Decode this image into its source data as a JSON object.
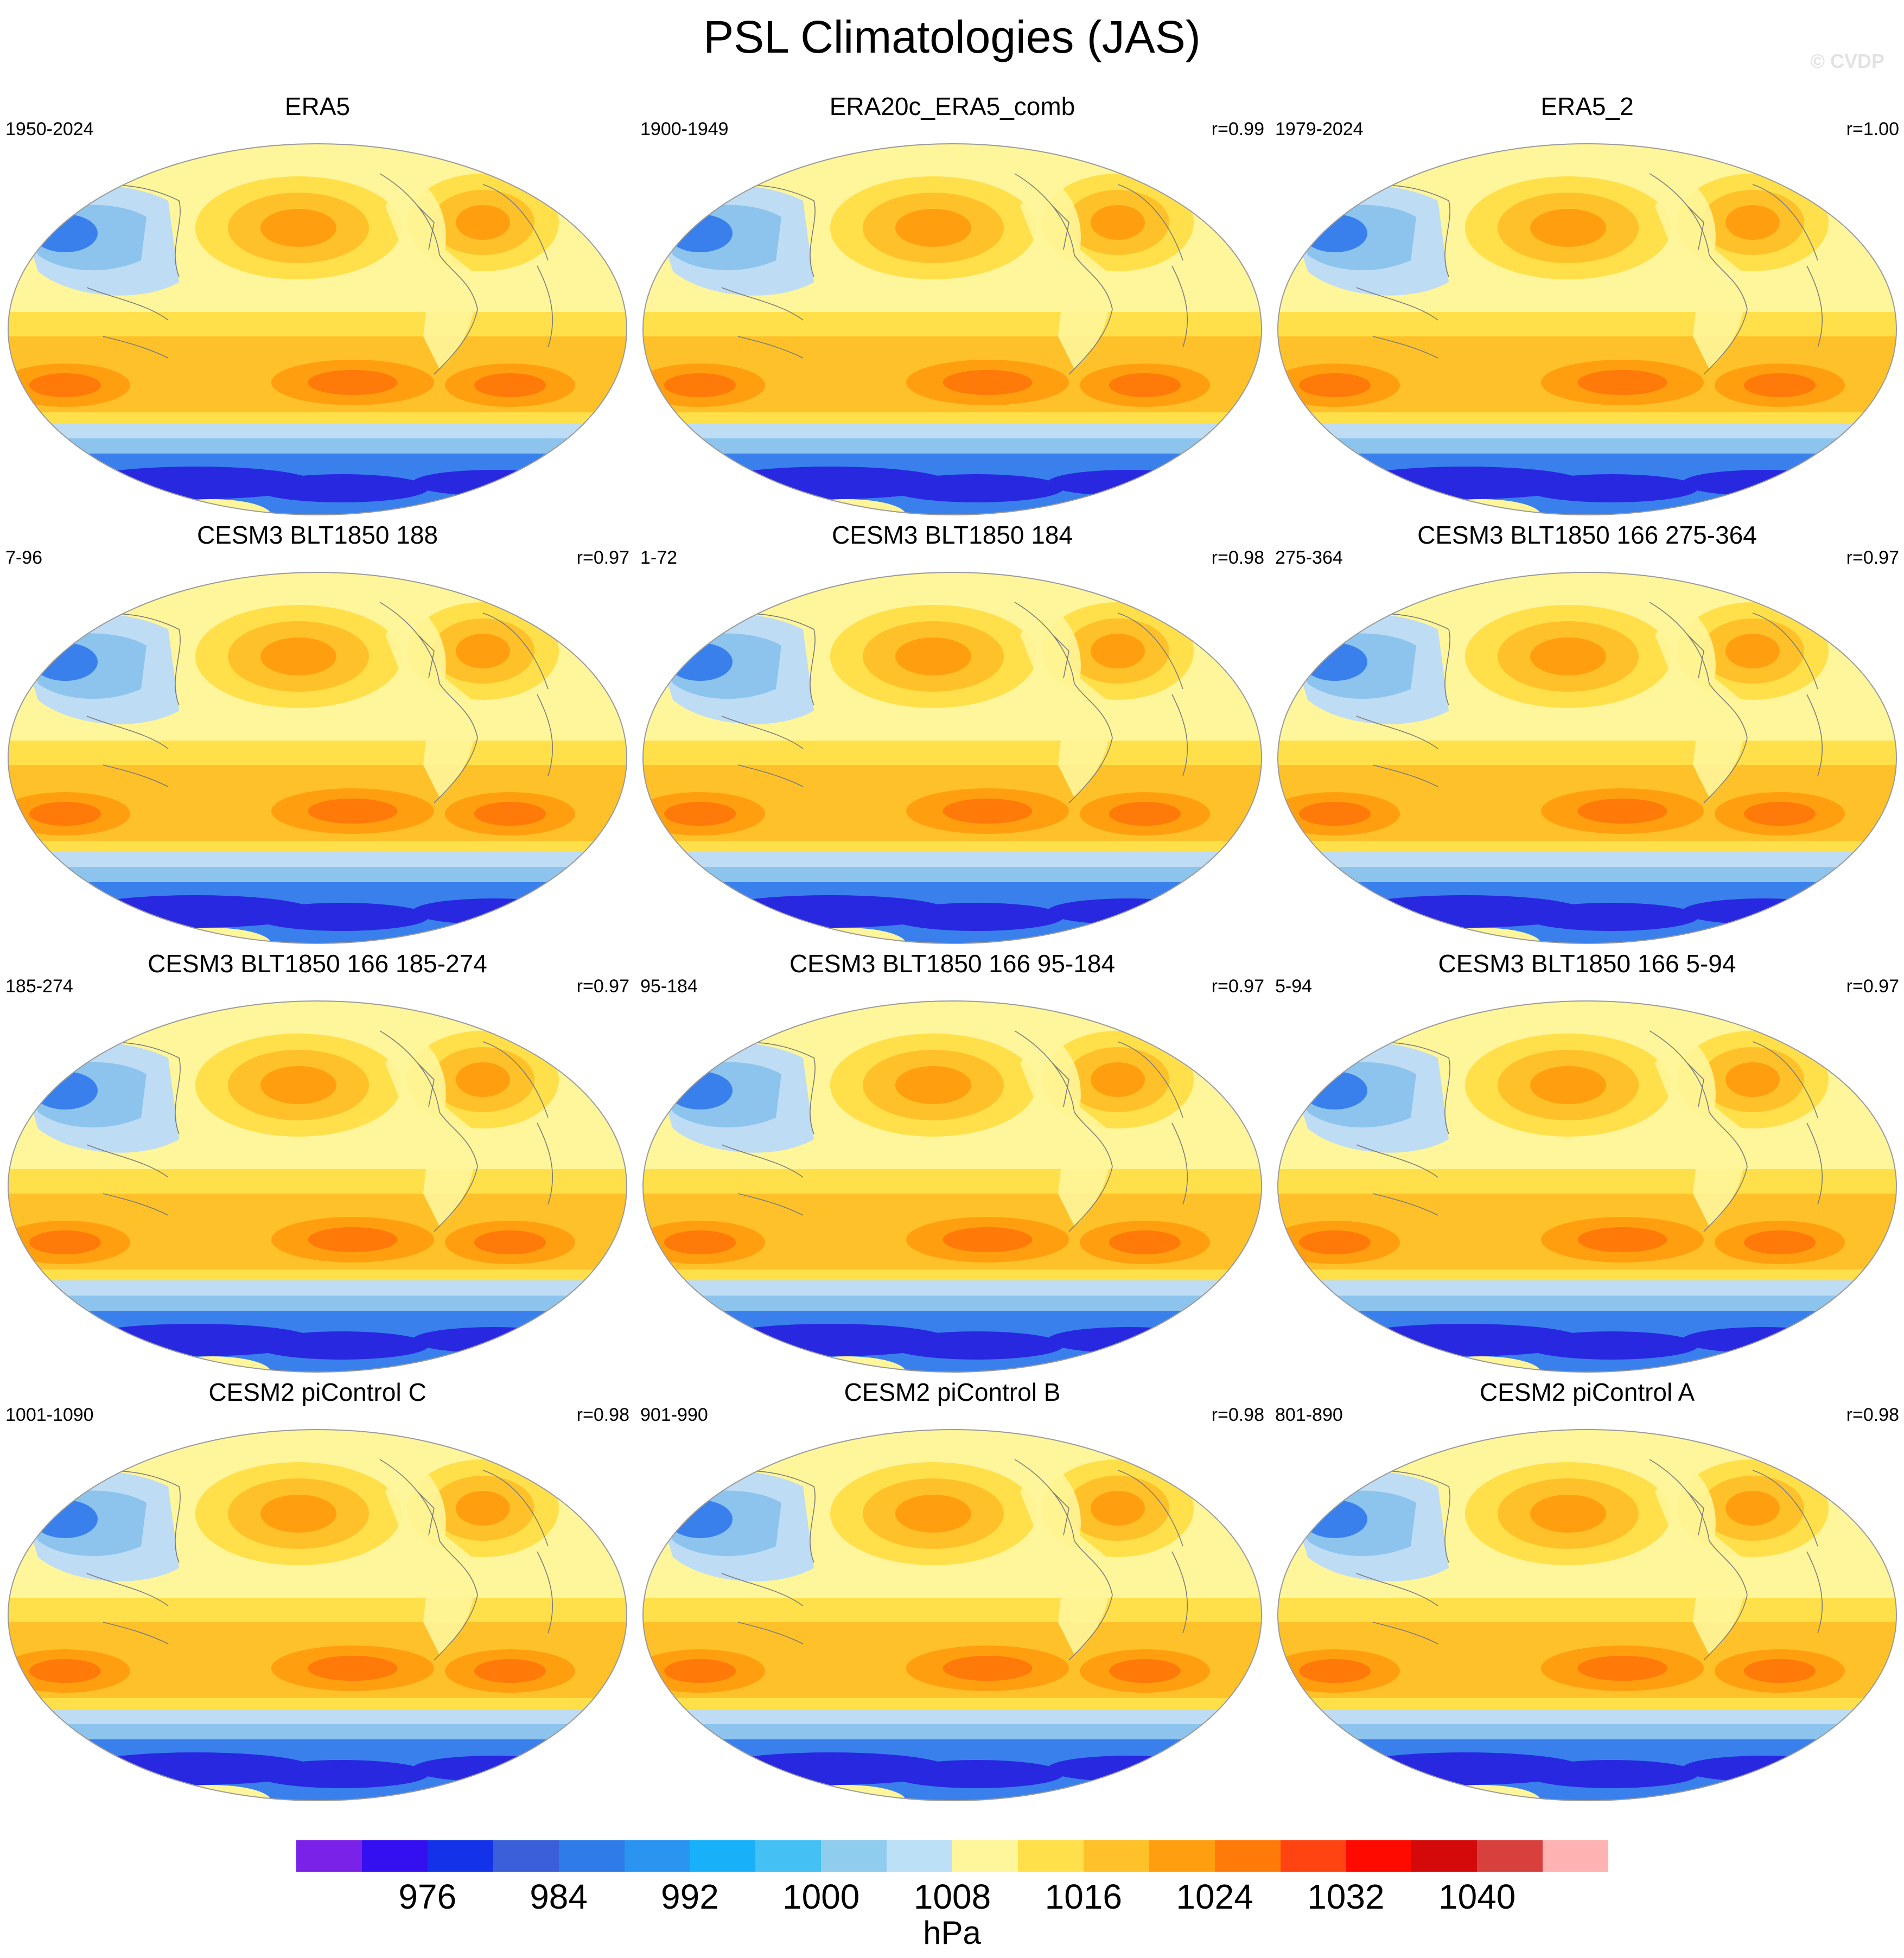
{
  "title": "PSL Climatologies (JAS)",
  "watermark": "© CVDP",
  "panels": [
    {
      "title": "ERA5",
      "period": "1950-2024",
      "corr": ""
    },
    {
      "title": "ERA20c_ERA5_comb",
      "period": "1900-1949",
      "corr": "r=0.99"
    },
    {
      "title": "ERA5_2",
      "period": "1979-2024",
      "corr": "r=1.00"
    },
    {
      "title": "CESM3 BLT1850 188",
      "period": "7-96",
      "corr": "r=0.97"
    },
    {
      "title": "CESM3 BLT1850 184",
      "period": "1-72",
      "corr": "r=0.98"
    },
    {
      "title": "CESM3 BLT1850 166 275-364",
      "period": "275-364",
      "corr": "r=0.97"
    },
    {
      "title": "CESM3 BLT1850 166 185-274",
      "period": "185-274",
      "corr": "r=0.97"
    },
    {
      "title": "CESM3 BLT1850 166 95-184",
      "period": "95-184",
      "corr": "r=0.97"
    },
    {
      "title": "CESM3 BLT1850 166 5-94",
      "period": "5-94",
      "corr": "r=0.97"
    },
    {
      "title": "CESM2 piControl C",
      "period": "1001-1090",
      "corr": "r=0.98"
    },
    {
      "title": "CESM2 piControl B",
      "period": "901-990",
      "corr": "r=0.98"
    },
    {
      "title": "CESM2 piControl A",
      "period": "801-890",
      "corr": "r=0.98"
    }
  ],
  "colorbar": {
    "colors": [
      "#7b22e8",
      "#3410f0",
      "#1433e8",
      "#3b5fd8",
      "#2f7ce8",
      "#2a94f0",
      "#18b0f8",
      "#44c0f4",
      "#90ccee",
      "#bce0f6",
      "#fff59a",
      "#ffe04a",
      "#ffc12a",
      "#ff9f10",
      "#ff7a08",
      "#ff4412",
      "#ff0a00",
      "#d40a0a",
      "#d8403e",
      "#ffb2b2"
    ],
    "labels": [
      "976",
      "984",
      "992",
      "1000",
      "1008",
      "1016",
      "1024",
      "1032",
      "1040"
    ],
    "units": "hPa"
  },
  "map_palette": {
    "low_deep": "#2828e0",
    "low_mid": "#3a80ec",
    "low_light": "#8cc4ee",
    "low_pale": "#bedcf4",
    "mid": "#fff59a",
    "high_1": "#ffe04a",
    "high_2": "#ffc12a",
    "high_3": "#ff9f10",
    "high_4": "#ff7a08",
    "coast": "#7a7a7a"
  }
}
